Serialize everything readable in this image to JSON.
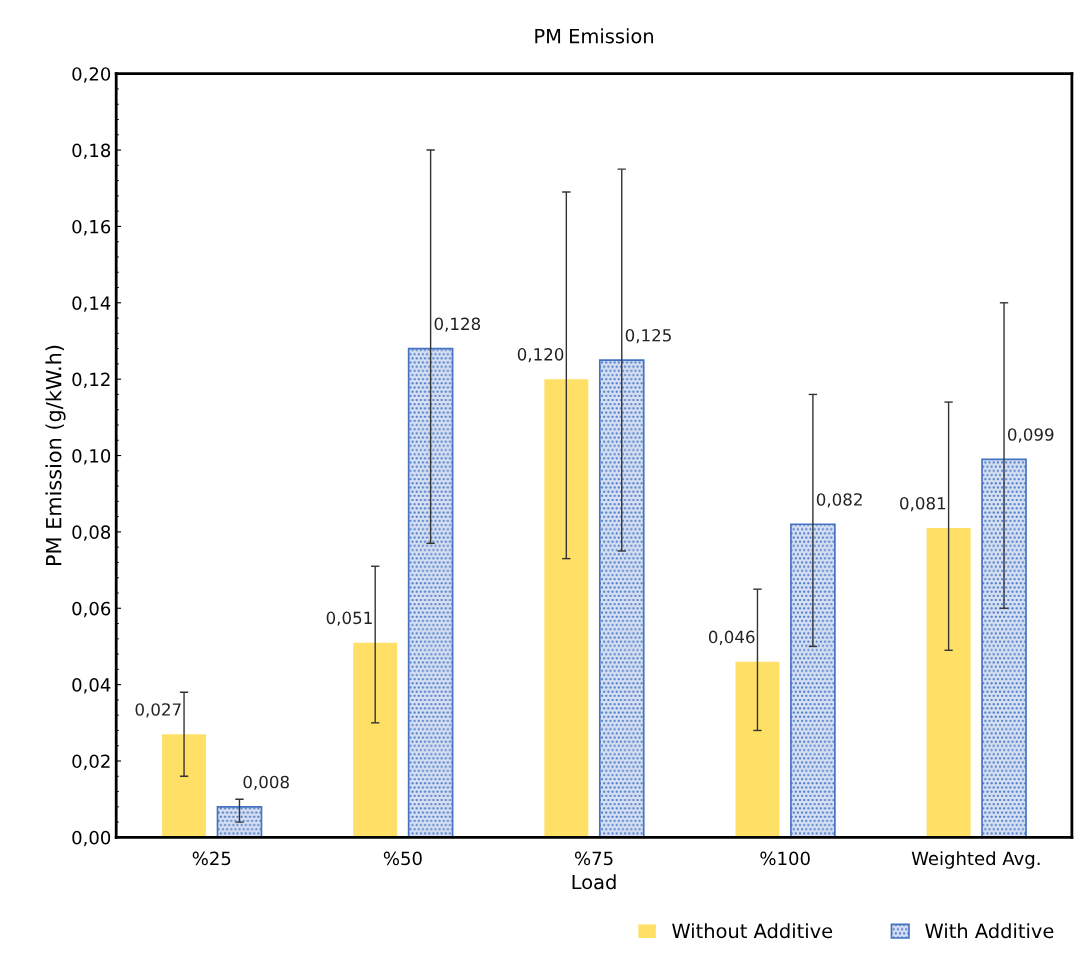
{
  "chart_data": {
    "type": "bar",
    "title": "PM Emission",
    "xlabel": "Load",
    "ylabel": "PM Emission (g/kW.h)",
    "categories": [
      "%25",
      "%50",
      "%75",
      "%100",
      "Weighted Avg."
    ],
    "series": [
      {
        "name": "Without Additive",
        "color": "#ffe066",
        "values": [
          0.027,
          0.051,
          0.12,
          0.046,
          0.081
        ],
        "value_labels": [
          "0,027",
          "0,051",
          "0,120",
          "0,046",
          "0,081"
        ],
        "errors": [
          [
            0.016,
            0.038
          ],
          [
            0.03,
            0.071
          ],
          [
            0.073,
            0.169
          ],
          [
            0.028,
            0.065
          ],
          [
            0.049,
            0.114
          ]
        ]
      },
      {
        "name": "With Additive",
        "color": "#4472c4",
        "values": [
          0.008,
          0.128,
          0.125,
          0.082,
          0.099
        ],
        "value_labels": [
          "0,008",
          "0,128",
          "0,125",
          "0,082",
          "0,099"
        ],
        "errors": [
          [
            0.004,
            0.01
          ],
          [
            0.077,
            0.18
          ],
          [
            0.075,
            0.175
          ],
          [
            0.05,
            0.116
          ],
          [
            0.06,
            0.14
          ]
        ]
      }
    ],
    "ylim": [
      0,
      0.2
    ],
    "yticks": [
      {
        "value": 0,
        "label": "0,00"
      },
      {
        "value": 0.02,
        "label": "0,02"
      },
      {
        "value": 0.04,
        "label": "0,04"
      },
      {
        "value": 0.06,
        "label": "0,06"
      },
      {
        "value": 0.08,
        "label": "0,08"
      },
      {
        "value": 0.1,
        "label": "0,10"
      },
      {
        "value": 0.12,
        "label": "0,12"
      },
      {
        "value": 0.14,
        "label": "0,14"
      },
      {
        "value": 0.16,
        "label": "0,16"
      },
      {
        "value": 0.18,
        "label": "0,18"
      },
      {
        "value": 0.2,
        "label": "0,20"
      }
    ],
    "grid": false,
    "legend": "bottom right"
  }
}
